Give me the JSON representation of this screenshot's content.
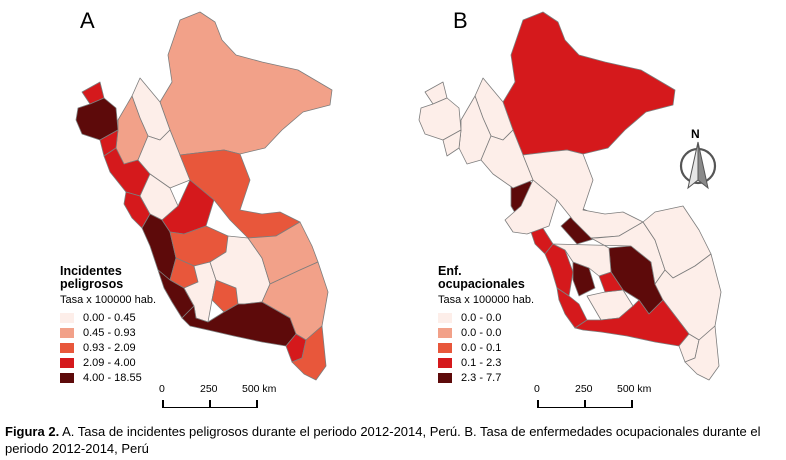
{
  "figure": {
    "caption_label": "Figura 2.",
    "caption_text": " A. Tasa de incidentes peligrosos durante el periodo 2012-2014, Perú. B. Tasa de enfermedades ocupacionales durante el periodo 2012-2014, Perú"
  },
  "colors": {
    "class1": "#fdeee9",
    "class2": "#f2a189",
    "class3": "#e8573b",
    "class4": "#d5191c",
    "class5": "#5d0a0a",
    "border": "#7d7d7d"
  },
  "panel_a": {
    "letter": "A",
    "legend": {
      "title_line1": "Incidentes",
      "title_line2": "peligrosos",
      "subtitle": "Tasa x 100000 hab.",
      "items": [
        {
          "label": "0.00 - 0.45",
          "color": "#fdeee9"
        },
        {
          "label": "0.45 - 0.93",
          "color": "#f2a189"
        },
        {
          "label": "0.93 - 2.09",
          "color": "#e8573b"
        },
        {
          "label": "2.09 - 4.00",
          "color": "#d5191c"
        },
        {
          "label": "4.00 - 18.55",
          "color": "#5d0a0a"
        }
      ]
    },
    "scale": {
      "labels": [
        "0",
        "250",
        "500 km"
      ]
    }
  },
  "panel_b": {
    "letter": "B",
    "legend": {
      "title_line1": "Enf.",
      "title_line2": "ocupacionales",
      "subtitle": "Tasa x 100000 hab.",
      "items": [
        {
          "label": "0.0 - 0.0",
          "color": "#fdeee9"
        },
        {
          "label": "0.0 - 0.0",
          "color": "#f2a189"
        },
        {
          "label": "0.0 - 0.1",
          "color": "#e8573b"
        },
        {
          "label": "0.1 - 2.3",
          "color": "#d5191c"
        },
        {
          "label": "2.3 - 7.7",
          "color": "#5d0a0a"
        }
      ]
    },
    "scale": {
      "labels": [
        "0",
        "250",
        "500 km"
      ]
    },
    "north_arrow_label": "N"
  }
}
